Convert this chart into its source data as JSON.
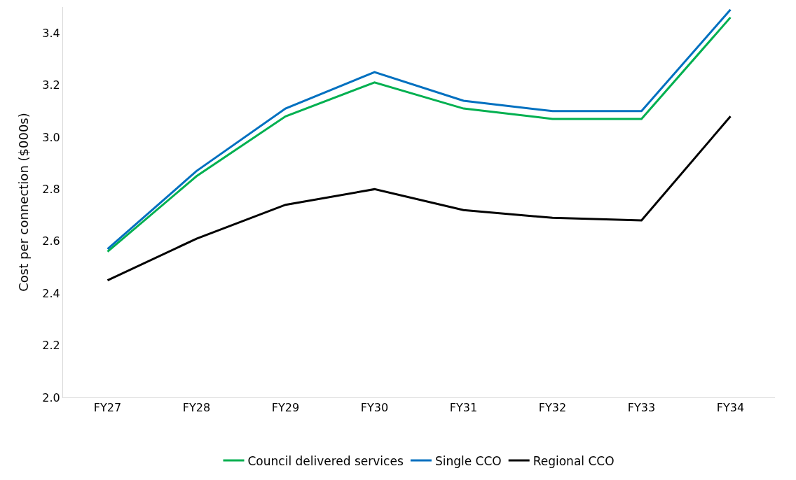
{
  "chart_data": {
    "type": "line",
    "ylabel": "Cost per connection ($000s)",
    "categories": [
      "FY27",
      "FY28",
      "FY29",
      "FY30",
      "FY31",
      "FY32",
      "FY33",
      "FY34"
    ],
    "series": [
      {
        "name": "Council delivered services",
        "color": "#00b050",
        "values": [
          2.56,
          2.85,
          3.08,
          3.21,
          3.11,
          3.07,
          3.07,
          3.46
        ]
      },
      {
        "name": "Single CCO",
        "color": "#0070c0",
        "values": [
          2.57,
          2.87,
          3.11,
          3.25,
          3.14,
          3.1,
          3.1,
          3.49
        ]
      },
      {
        "name": "Regional CCO",
        "color": "#000000",
        "values": [
          2.45,
          2.61,
          2.74,
          2.8,
          2.72,
          2.69,
          2.68,
          3.08
        ]
      }
    ],
    "ylim": [
      2.0,
      3.5
    ],
    "yticks": [
      {
        "value": 2.0,
        "label": "2.0"
      },
      {
        "value": 2.2,
        "label": "2.2"
      },
      {
        "value": 2.4,
        "label": "2.4"
      },
      {
        "value": 2.6,
        "label": "2.6"
      },
      {
        "value": 2.8,
        "label": "2.8"
      },
      {
        "value": 3.0,
        "label": "3.0"
      },
      {
        "value": 3.2,
        "label": "3.2"
      },
      {
        "value": 3.4,
        "label": "3.4"
      }
    ],
    "grid": false,
    "legend": "bottom",
    "marker": "none",
    "line_style": "solid"
  }
}
